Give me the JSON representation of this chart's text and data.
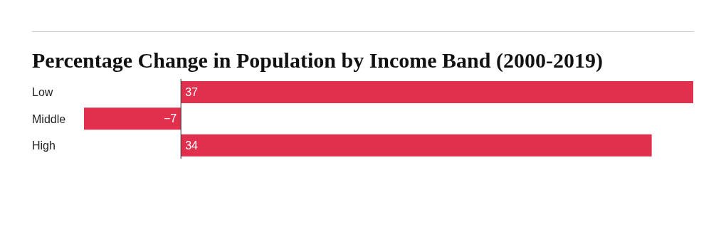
{
  "chart_data": {
    "type": "bar",
    "orientation": "horizontal",
    "title": "Percentage Change in Population by Income Band (2000-2019)",
    "categories": [
      "Low",
      "Middle",
      "High"
    ],
    "values": [
      37,
      -7,
      34
    ],
    "color": "#e0304e",
    "data_labels": true
  }
}
